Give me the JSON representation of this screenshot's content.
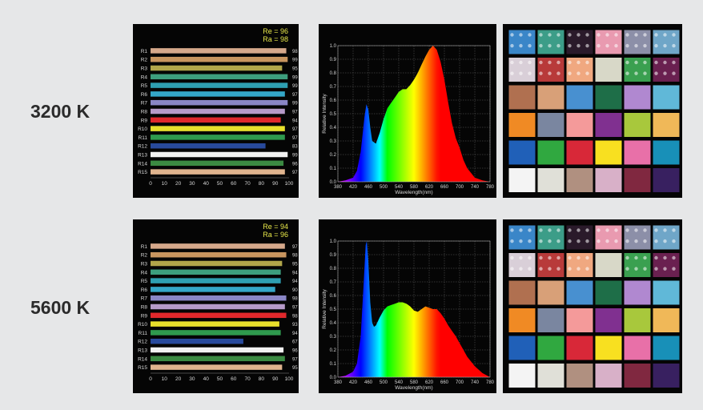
{
  "rows": [
    {
      "label": "3200 K",
      "cri": {
        "re_text": "Re = 96",
        "ra_text": "Ra = 98",
        "items": [
          {
            "name": "R1",
            "value": 98,
            "color": "#d6a88b"
          },
          {
            "name": "R2",
            "value": 99,
            "color": "#c8955f"
          },
          {
            "name": "R3",
            "value": 95,
            "color": "#b1a64a"
          },
          {
            "name": "R4",
            "value": 99,
            "color": "#3d9e7e"
          },
          {
            "name": "R5",
            "value": 99,
            "color": "#2e9fb2"
          },
          {
            "name": "R6",
            "value": 97,
            "color": "#34a7c8"
          },
          {
            "name": "R7",
            "value": 99,
            "color": "#8a86c6"
          },
          {
            "name": "R8",
            "value": 97,
            "color": "#b69ac8"
          },
          {
            "name": "R9",
            "value": 94,
            "color": "#e0282c"
          },
          {
            "name": "R10",
            "value": 97,
            "color": "#e8e02c"
          },
          {
            "name": "R11",
            "value": 97,
            "color": "#2f9a4e"
          },
          {
            "name": "R12",
            "value": 83,
            "color": "#284a9c"
          },
          {
            "name": "R13",
            "value": 99,
            "color": "#f2f2f2"
          },
          {
            "name": "R14",
            "value": 96,
            "color": "#3b8a42"
          },
          {
            "name": "R15",
            "value": 97,
            "color": "#e0b48e"
          }
        ]
      },
      "spectrum": [
        [
          380,
          0
        ],
        [
          400,
          0.01
        ],
        [
          420,
          0.03
        ],
        [
          430,
          0.08
        ],
        [
          440,
          0.22
        ],
        [
          450,
          0.48
        ],
        [
          455,
          0.57
        ],
        [
          460,
          0.53
        ],
        [
          465,
          0.4
        ],
        [
          470,
          0.3
        ],
        [
          480,
          0.28
        ],
        [
          490,
          0.36
        ],
        [
          500,
          0.46
        ],
        [
          510,
          0.54
        ],
        [
          520,
          0.58
        ],
        [
          530,
          0.62
        ],
        [
          540,
          0.66
        ],
        [
          550,
          0.68
        ],
        [
          560,
          0.68
        ],
        [
          570,
          0.71
        ],
        [
          580,
          0.75
        ],
        [
          590,
          0.8
        ],
        [
          600,
          0.86
        ],
        [
          610,
          0.92
        ],
        [
          620,
          0.97
        ],
        [
          630,
          1.0
        ],
        [
          640,
          0.97
        ],
        [
          650,
          0.88
        ],
        [
          660,
          0.75
        ],
        [
          670,
          0.58
        ],
        [
          680,
          0.43
        ],
        [
          690,
          0.32
        ],
        [
          700,
          0.25
        ],
        [
          710,
          0.16
        ],
        [
          720,
          0.1
        ],
        [
          740,
          0.03
        ],
        [
          760,
          0.01
        ],
        [
          780,
          0
        ]
      ]
    },
    {
      "label": "5600 K",
      "cri": {
        "re_text": "Re = 94",
        "ra_text": "Ra = 96",
        "items": [
          {
            "name": "R1",
            "value": 97,
            "color": "#d6a88b"
          },
          {
            "name": "R2",
            "value": 98,
            "color": "#c8955f"
          },
          {
            "name": "R3",
            "value": 95,
            "color": "#b1a64a"
          },
          {
            "name": "R4",
            "value": 94,
            "color": "#3d9e7e"
          },
          {
            "name": "R5",
            "value": 94,
            "color": "#2e9fb2"
          },
          {
            "name": "R6",
            "value": 90,
            "color": "#34a7c8"
          },
          {
            "name": "R7",
            "value": 98,
            "color": "#8a86c6"
          },
          {
            "name": "R8",
            "value": 97,
            "color": "#b69ac8"
          },
          {
            "name": "R9",
            "value": 98,
            "color": "#e0282c"
          },
          {
            "name": "R10",
            "value": 93,
            "color": "#e8e02c"
          },
          {
            "name": "R11",
            "value": 94,
            "color": "#2f9a4e"
          },
          {
            "name": "R12",
            "value": 67,
            "color": "#284a9c"
          },
          {
            "name": "R13",
            "value": 96,
            "color": "#f2f2f2"
          },
          {
            "name": "R14",
            "value": 97,
            "color": "#3b8a42"
          },
          {
            "name": "R15",
            "value": 95,
            "color": "#e0b48e"
          }
        ]
      },
      "spectrum": [
        [
          380,
          0
        ],
        [
          400,
          0.01
        ],
        [
          420,
          0.04
        ],
        [
          430,
          0.1
        ],
        [
          440,
          0.3
        ],
        [
          448,
          0.7
        ],
        [
          453,
          0.97
        ],
        [
          456,
          1.0
        ],
        [
          460,
          0.85
        ],
        [
          465,
          0.55
        ],
        [
          470,
          0.4
        ],
        [
          475,
          0.37
        ],
        [
          480,
          0.38
        ],
        [
          490,
          0.44
        ],
        [
          500,
          0.49
        ],
        [
          510,
          0.52
        ],
        [
          520,
          0.53
        ],
        [
          530,
          0.54
        ],
        [
          540,
          0.55
        ],
        [
          550,
          0.55
        ],
        [
          560,
          0.54
        ],
        [
          570,
          0.52
        ],
        [
          580,
          0.49
        ],
        [
          590,
          0.48
        ],
        [
          600,
          0.5
        ],
        [
          610,
          0.52
        ],
        [
          620,
          0.51
        ],
        [
          630,
          0.5
        ],
        [
          640,
          0.5
        ],
        [
          650,
          0.47
        ],
        [
          660,
          0.43
        ],
        [
          670,
          0.38
        ],
        [
          680,
          0.34
        ],
        [
          690,
          0.3
        ],
        [
          700,
          0.25
        ],
        [
          710,
          0.2
        ],
        [
          720,
          0.15
        ],
        [
          740,
          0.08
        ],
        [
          760,
          0.03
        ],
        [
          780,
          0
        ]
      ]
    }
  ],
  "bar_axis": {
    "ticks": [
      0,
      10,
      20,
      30,
      40,
      50,
      60,
      70,
      80,
      90,
      100
    ]
  },
  "spectrum_axis": {
    "xlabel": "Wavelength(nm)",
    "ylabel": "Relative Intensity",
    "xticks": [
      380,
      420,
      460,
      500,
      540,
      580,
      620,
      660,
      700,
      740,
      780
    ],
    "yticks": [
      "0.0",
      "0.1",
      "0.2",
      "0.3",
      "0.4",
      "0.5",
      "0.6",
      "0.7",
      "0.8",
      "0.9",
      "1.0"
    ],
    "xlim": [
      380,
      780
    ],
    "ylim": [
      0,
      1
    ]
  },
  "chart_data": [
    {
      "type": "bar",
      "title": "",
      "categories": [
        "R1",
        "R2",
        "R3",
        "R4",
        "R5",
        "R6",
        "R7",
        "R8",
        "R9",
        "R10",
        "R11",
        "R12",
        "R13",
        "R14",
        "R15"
      ],
      "values": [
        98,
        99,
        95,
        99,
        99,
        97,
        99,
        97,
        94,
        97,
        97,
        83,
        99,
        96,
        97
      ],
      "annotations": [
        "Re = 96",
        "Ra = 98"
      ],
      "xlim": [
        0,
        100
      ]
    },
    {
      "type": "area",
      "title": "",
      "xlabel": "Wavelength(nm)",
      "ylabel": "Relative Intensity",
      "x": [
        380,
        400,
        420,
        440,
        460,
        480,
        500,
        520,
        540,
        560,
        580,
        600,
        620,
        640,
        660,
        680,
        700,
        720,
        740,
        760,
        780
      ],
      "y": [
        0,
        0.01,
        0.03,
        0.22,
        0.53,
        0.28,
        0.46,
        0.58,
        0.66,
        0.68,
        0.75,
        0.86,
        0.97,
        0.97,
        0.75,
        0.43,
        0.25,
        0.1,
        0.03,
        0.01,
        0
      ],
      "xlim": [
        380,
        780
      ],
      "ylim": [
        0,
        1
      ],
      "grid": true
    },
    {
      "type": "bar",
      "title": "",
      "categories": [
        "R1",
        "R2",
        "R3",
        "R4",
        "R5",
        "R6",
        "R7",
        "R8",
        "R9",
        "R10",
        "R11",
        "R12",
        "R13",
        "R14",
        "R15"
      ],
      "values": [
        97,
        98,
        95,
        94,
        94,
        90,
        98,
        97,
        98,
        93,
        94,
        67,
        96,
        97,
        95
      ],
      "annotations": [
        "Re = 94",
        "Ra = 96"
      ],
      "xlim": [
        0,
        100
      ]
    },
    {
      "type": "area",
      "title": "",
      "xlabel": "Wavelength(nm)",
      "ylabel": "Relative Intensity",
      "x": [
        380,
        400,
        420,
        440,
        456,
        480,
        500,
        520,
        540,
        560,
        580,
        600,
        620,
        640,
        660,
        680,
        700,
        720,
        740,
        760,
        780
      ],
      "y": [
        0,
        0.01,
        0.04,
        0.3,
        1.0,
        0.38,
        0.49,
        0.53,
        0.55,
        0.54,
        0.49,
        0.5,
        0.51,
        0.5,
        0.43,
        0.34,
        0.25,
        0.15,
        0.08,
        0.03,
        0
      ],
      "xlim": [
        380,
        780
      ],
      "ylim": [
        0,
        1
      ],
      "grid": true
    }
  ],
  "swatches": [
    [
      [
        "#3a86c8",
        "pattern"
      ],
      [
        "#3c9d88",
        "pattern"
      ],
      [
        "#2a1a2a",
        "pattern"
      ],
      [
        "#e99ab0",
        "pattern"
      ],
      [
        "#8c8fa8",
        "pattern"
      ],
      [
        "#6fa6c8",
        "pattern"
      ]
    ],
    [
      [
        "#d9cfd8",
        "pattern"
      ],
      [
        "#b83a3a",
        "pattern"
      ],
      [
        "#f0a880",
        "pattern"
      ],
      [
        "#d8d8c8",
        "plain"
      ],
      [
        "#3aa050",
        "pattern"
      ],
      [
        "#6a2050",
        "pattern"
      ]
    ],
    [
      [
        "#b07050",
        "plain"
      ],
      [
        "#d8a078",
        "plain"
      ],
      [
        "#4890d0",
        "plain"
      ],
      [
        "#1e6e48",
        "plain"
      ],
      [
        "#b088d0",
        "plain"
      ],
      [
        "#60b8d8",
        "plain"
      ]
    ],
    [
      [
        "#f08a24",
        "plain"
      ],
      [
        "#7a86a0",
        "plain"
      ],
      [
        "#f49a9a",
        "plain"
      ],
      [
        "#803090",
        "plain"
      ],
      [
        "#a8c83c",
        "plain"
      ],
      [
        "#f0b858",
        "plain"
      ]
    ],
    [
      [
        "#2060b8",
        "plain"
      ],
      [
        "#30a840",
        "plain"
      ],
      [
        "#d82838",
        "plain"
      ],
      [
        "#f8e020",
        "plain"
      ],
      [
        "#e870a8",
        "plain"
      ],
      [
        "#1890b8",
        "plain"
      ]
    ],
    [
      [
        "#f4f4f4",
        "plain"
      ],
      [
        "#e0e0d8",
        "plain"
      ],
      [
        "#b09080",
        "plain"
      ],
      [
        "#d8b0c8",
        "plain"
      ],
      [
        "#802840",
        "plain"
      ],
      [
        "#382060",
        "plain"
      ]
    ]
  ]
}
